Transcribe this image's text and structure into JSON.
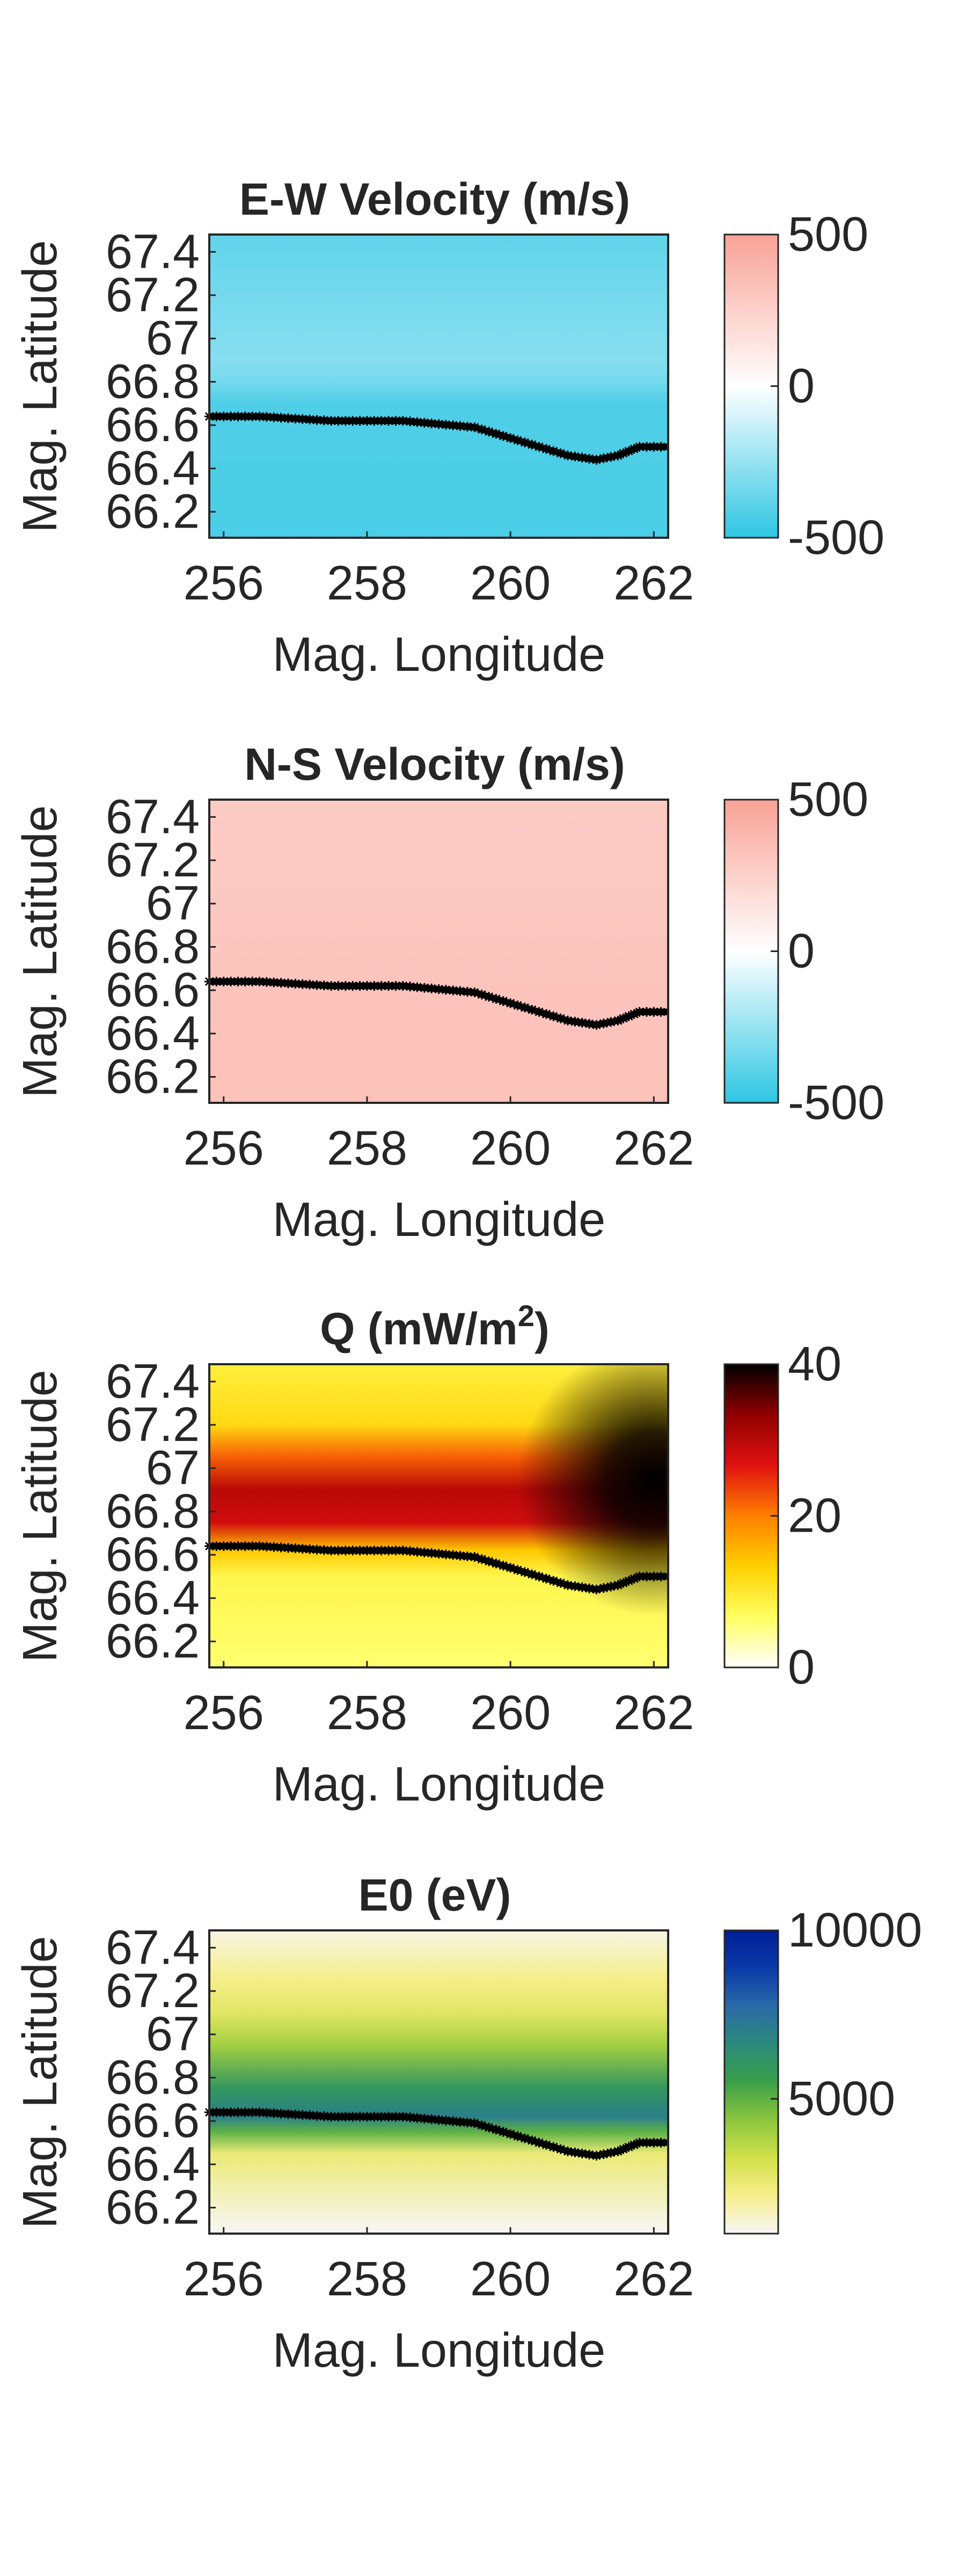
{
  "figure": {
    "layout": "4 stacked map panels with colorbars",
    "background": "#ffffff"
  },
  "chart_data": [
    {
      "type": "heatmap",
      "title": "E-W Velocity (m/s)",
      "title_parts": [
        "E-W Velocity (m/s)"
      ],
      "xlabel": "Mag. Longitude",
      "ylabel": "Mag. Latitude",
      "xlim": [
        255.8,
        262.2
      ],
      "ylim": [
        66.08,
        67.48
      ],
      "xticks": [
        256,
        258,
        260,
        262
      ],
      "xtick_labels": [
        "256",
        "258",
        "260",
        "262"
      ],
      "yticks": [
        66.2,
        66.4,
        66.6,
        66.8,
        67,
        67.2,
        67.4
      ],
      "ytick_labels": [
        "66.2",
        "66.4",
        "66.6",
        "66.8",
        "67",
        "67.2",
        "67.4"
      ],
      "colormap": "diverging",
      "colormap_colors": [
        "#2ec6e3",
        "#ffffff",
        "#f9a296"
      ],
      "clim": [
        -500,
        500
      ],
      "colorbar_ticks": [
        500,
        0,
        -500
      ],
      "colorbar_tick_labels": [
        "500",
        "0",
        "-500"
      ],
      "field": {
        "x": [
          255.8,
          262.2
        ],
        "y": [
          66.08,
          66.7,
          66.8,
          66.9,
          67.2,
          67.48
        ],
        "values": [
          -430,
          -420,
          -330,
          -290,
          -330,
          -380
        ]
      },
      "boundary_line": {
        "x": [
          255.8,
          256.5,
          257.5,
          258.5,
          259.5,
          260.2,
          260.8,
          261.2,
          261.5,
          261.8,
          262.2
        ],
        "y": [
          66.64,
          66.64,
          66.62,
          66.62,
          66.59,
          66.52,
          66.46,
          66.44,
          66.46,
          66.5,
          66.5
        ],
        "color": "#000000"
      }
    },
    {
      "type": "heatmap",
      "title": "N-S Velocity (m/s)",
      "title_parts": [
        "N-S Velocity (m/s)"
      ],
      "xlabel": "Mag. Longitude",
      "ylabel": "Mag. Latitude",
      "xlim": [
        255.8,
        262.2
      ],
      "ylim": [
        66.08,
        67.48
      ],
      "xticks": [
        256,
        258,
        260,
        262
      ],
      "xtick_labels": [
        "256",
        "258",
        "260",
        "262"
      ],
      "yticks": [
        66.2,
        66.4,
        66.6,
        66.8,
        67,
        67.2,
        67.4
      ],
      "ytick_labels": [
        "66.2",
        "66.4",
        "66.6",
        "66.8",
        "67",
        "67.2",
        "67.4"
      ],
      "colormap": "diverging",
      "colormap_colors": [
        "#2ec6e3",
        "#ffffff",
        "#f9a296"
      ],
      "clim": [
        -500,
        500
      ],
      "colorbar_ticks": [
        500,
        0,
        -500
      ],
      "colorbar_tick_labels": [
        "500",
        "0",
        "-500"
      ],
      "field": {
        "x": [
          255.8,
          262.2
        ],
        "y": [
          66.08,
          66.6,
          67.0,
          67.48
        ],
        "values": [
          330,
          320,
          290,
          280
        ]
      },
      "boundary_line": {
        "x": [
          255.8,
          256.5,
          257.5,
          258.5,
          259.5,
          260.2,
          260.8,
          261.2,
          261.5,
          261.8,
          262.2
        ],
        "y": [
          66.64,
          66.64,
          66.62,
          66.62,
          66.59,
          66.52,
          66.46,
          66.44,
          66.46,
          66.5,
          66.5
        ],
        "color": "#000000"
      }
    },
    {
      "type": "heatmap",
      "title": "Q (mW/m2)",
      "title_parts": [
        "Q (mW/m",
        "2",
        ")"
      ],
      "xlabel": "Mag. Longitude",
      "ylabel": "Mag. Latitude",
      "xlim": [
        255.8,
        262.2
      ],
      "ylim": [
        66.08,
        67.48
      ],
      "xticks": [
        256,
        258,
        260,
        262
      ],
      "xtick_labels": [
        "256",
        "258",
        "260",
        "262"
      ],
      "yticks": [
        66.2,
        66.4,
        66.6,
        66.8,
        67,
        67.2,
        67.4
      ],
      "ytick_labels": [
        "66.2",
        "66.4",
        "66.6",
        "66.8",
        "67",
        "67.2",
        "67.4"
      ],
      "colormap": "hot (reversed)",
      "colormap_colors": [
        "#ffffff",
        "#ffff60",
        "#ffd000",
        "#ff8000",
        "#e01010",
        "#900000",
        "#000000"
      ],
      "clim": [
        0,
        40
      ],
      "colorbar_ticks": [
        40,
        20,
        0
      ],
      "colorbar_tick_labels": [
        "40",
        "20",
        "0"
      ],
      "field": {
        "x": [
          255.8,
          262.2
        ],
        "y": [
          66.08,
          66.5,
          66.62,
          66.75,
          66.9,
          67.05,
          67.2,
          67.48
        ],
        "values": [
          6,
          8,
          14,
          28,
          30,
          22,
          12,
          9
        ],
        "hotspot": {
          "x": 262.0,
          "y": 66.95,
          "value": 40
        }
      },
      "boundary_line": {
        "x": [
          255.8,
          256.5,
          257.5,
          258.5,
          259.5,
          260.2,
          260.8,
          261.2,
          261.5,
          261.8,
          262.2
        ],
        "y": [
          66.64,
          66.64,
          66.62,
          66.62,
          66.59,
          66.52,
          66.46,
          66.44,
          66.46,
          66.5,
          66.5
        ],
        "color": "#000000"
      }
    },
    {
      "type": "heatmap",
      "title": "E0 (eV)",
      "title_parts": [
        "E0 (eV)"
      ],
      "xlabel": "Mag. Longitude",
      "ylabel": "Mag. Latitude",
      "xlim": [
        255.8,
        262.2
      ],
      "ylim": [
        66.08,
        67.48
      ],
      "xticks": [
        256,
        258,
        260,
        262
      ],
      "xtick_labels": [
        "256",
        "258",
        "260",
        "262"
      ],
      "yticks": [
        66.2,
        66.4,
        66.6,
        66.8,
        67,
        67.2,
        67.4
      ],
      "ytick_labels": [
        "66.2",
        "66.4",
        "66.6",
        "66.8",
        "67",
        "67.2",
        "67.4"
      ],
      "colormap": "filled contour, white-yellow-green-blue",
      "colormap_colors": [
        "#f7f7f7",
        "#f7ef8c",
        "#d2e04a",
        "#8cc63e",
        "#3aa048",
        "#2a8a7a",
        "#2a6aa8",
        "#0a3aa8",
        "#001e96"
      ],
      "clim": [
        1000,
        10000
      ],
      "colorbar_ticks": [
        10000,
        5000
      ],
      "colorbar_tick_labels": [
        "10000",
        "5000"
      ],
      "field": {
        "x": [
          255.8,
          262.2
        ],
        "y": [
          66.08,
          66.45,
          66.55,
          66.62,
          66.75,
          66.95,
          67.1,
          67.25,
          67.48
        ],
        "values": [
          1000,
          2500,
          5000,
          7000,
          6000,
          4000,
          2800,
          2200,
          1200
        ]
      },
      "boundary_line": {
        "x": [
          255.8,
          256.5,
          257.5,
          258.5,
          259.5,
          260.2,
          260.8,
          261.2,
          261.5,
          261.8,
          262.2
        ],
        "y": [
          66.64,
          66.64,
          66.62,
          66.62,
          66.59,
          66.52,
          66.46,
          66.44,
          66.46,
          66.5,
          66.5
        ],
        "color": "#000000"
      }
    }
  ]
}
